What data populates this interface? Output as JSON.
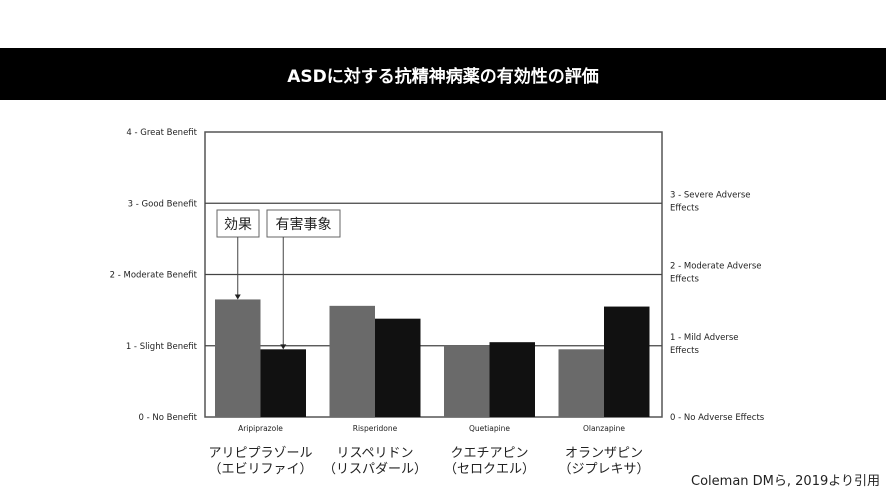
{
  "title": "ASDに対する抗精神病薬の有効性の評価",
  "chart_data": {
    "type": "bar",
    "categories": [
      "Aripiprazole",
      "Risperidone",
      "Quetiapine",
      "Olanzapine"
    ],
    "series": [
      {
        "name": "効果",
        "values": [
          1.65,
          1.56,
          1.0,
          0.95
        ],
        "color": "#6a6a6a"
      },
      {
        "name": "有害事象",
        "values": [
          0.95,
          1.38,
          1.05,
          1.55
        ],
        "color": "#111111"
      }
    ],
    "ylim": [
      0,
      4
    ],
    "left_ticks": [
      "0 - No Benefit",
      "1 - Slight Benefit",
      "2 - Moderate Benefit",
      "3 - Good Benefit",
      "4 - Great Benefit"
    ],
    "right_ticks": [
      [
        "0 - No Adverse Effects"
      ],
      [
        "1 - Mild Adverse",
        "Effects"
      ],
      [
        "2 - Moderate Adverse",
        "Effects"
      ],
      [
        "3 - Severe Adverse",
        "Effects"
      ]
    ],
    "grid": true
  },
  "jp_labels": [
    [
      "アリピプラゾール",
      "（エビリファイ）"
    ],
    [
      "リスペリドン",
      "（リスパダール）"
    ],
    [
      "クエチアピン",
      "（セロクエル）"
    ],
    [
      "オランザピン",
      "（ジプレキサ）"
    ]
  ],
  "citation": "Coleman DMら, 2019より引用"
}
